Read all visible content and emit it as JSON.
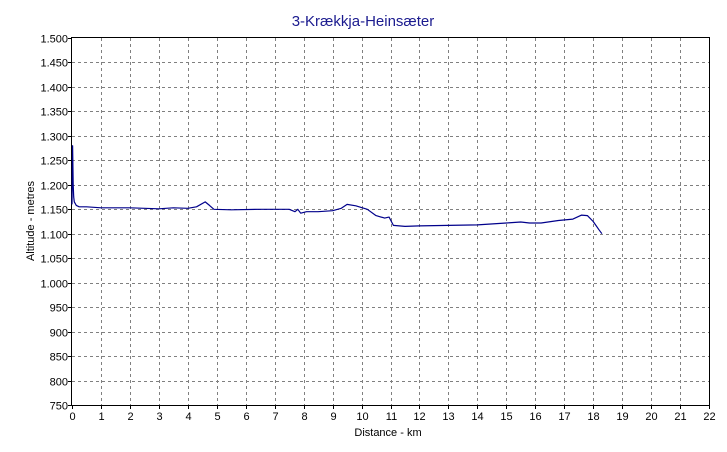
{
  "chart_data": {
    "type": "line",
    "title": "3-Krækkja-Heinsæter",
    "xlabel": "Distance - km",
    "ylabel": "Altitude - metres",
    "xlim": [
      0,
      22
    ],
    "ylim": [
      750,
      1500
    ],
    "x_ticks": [
      "0",
      "1",
      "2",
      "3",
      "4",
      "5",
      "6",
      "7",
      "8",
      "9",
      "10",
      "11",
      "12",
      "13",
      "14",
      "15",
      "16",
      "17",
      "18",
      "19",
      "20",
      "21",
      "22"
    ],
    "y_ticks": [
      "1.500",
      "1.450",
      "1.400",
      "1.350",
      "1.300",
      "1.250",
      "1.200",
      "1.150",
      "1.100",
      "1.050",
      "1.000",
      "950",
      "900",
      "850",
      "800",
      "750"
    ],
    "grid": true,
    "line_color": "#00008b",
    "series": [
      {
        "x": [
          0,
          0.02,
          0.04,
          0.06,
          0.08,
          0.1,
          0.15,
          0.25,
          0.5,
          1,
          2,
          3,
          3.5,
          4,
          4.3,
          4.6,
          4.75,
          4.9,
          5.5,
          6.5,
          7.5,
          7.7,
          7.8,
          7.9,
          8.1,
          8.5,
          9,
          9.3,
          9.5,
          9.8,
          10.2,
          10.5,
          10.8,
          10.95,
          11.1,
          11.5,
          12,
          13,
          14,
          15,
          15.5,
          15.8,
          16.2,
          16.8,
          17.3,
          17.6,
          17.8,
          18.0,
          18.2,
          18.3
        ],
        "y": [
          1160,
          1280,
          1200,
          1175,
          1165,
          1163,
          1158,
          1155,
          1155,
          1153,
          1153,
          1151,
          1153,
          1152,
          1155,
          1165,
          1158,
          1150,
          1149,
          1150,
          1150,
          1145,
          1150,
          1142,
          1145,
          1145,
          1147,
          1152,
          1160,
          1157,
          1150,
          1137,
          1132,
          1134,
          1117,
          1115,
          1116,
          1117,
          1118,
          1122,
          1124,
          1122,
          1122,
          1127,
          1130,
          1138,
          1137,
          1125,
          1108,
          1100
        ]
      }
    ]
  }
}
